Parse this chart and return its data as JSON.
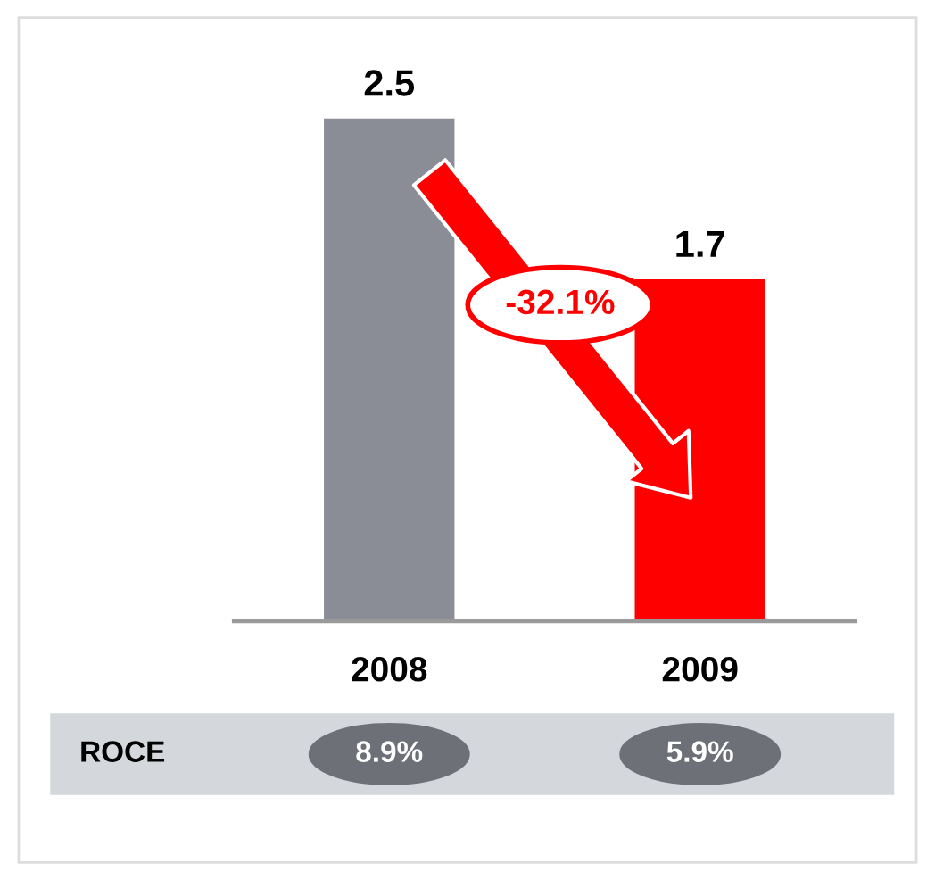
{
  "chart_data": {
    "type": "bar",
    "categories": [
      "2008",
      "2009"
    ],
    "values": [
      2.5,
      1.7
    ],
    "colors": [
      "#8a8c96",
      "#ff0000"
    ],
    "data_labels": true,
    "grid": false,
    "legend": false,
    "tick_labels": "x",
    "annotations": [
      "-32.1%",
      "ROCE",
      "8.9%",
      "5.9%"
    ]
  }
}
